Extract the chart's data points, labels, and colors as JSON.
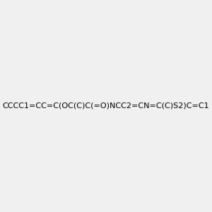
{
  "smiles": "CCCC1=CC=C(OC(C)C(=O)NCC2=CN=C(C)S2)C=C1",
  "title": "",
  "background_color": "#f0f0f0",
  "img_size": [
    300,
    300
  ],
  "atom_colors": {
    "N": "#0000ff",
    "O": "#ff0000",
    "S": "#cccc00",
    "C": "#000000",
    "H": "#008080"
  },
  "correct_smiles": "CCCC1=CC=C(OC(C)C(=O)NCC2=CN=C(C)S2)C=C1"
}
